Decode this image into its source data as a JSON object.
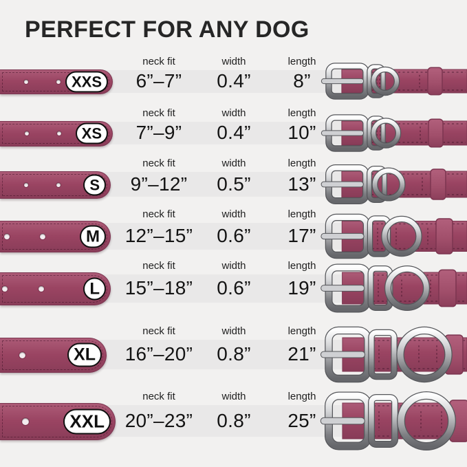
{
  "title": "PERFECT FOR ANY DOG",
  "columns": {
    "neck_fit": "neck fit",
    "width": "width",
    "length": "length"
  },
  "rows": [
    {
      "size": "XXS",
      "neck_fit": "6”–7”",
      "width": "0.4”",
      "length": "8”"
    },
    {
      "size": "XS",
      "neck_fit": "7”–9”",
      "width": "0.4”",
      "length": "10”"
    },
    {
      "size": "S",
      "neck_fit": "9”–12”",
      "width": "0.5”",
      "length": "13”"
    },
    {
      "size": "M",
      "neck_fit": "12”–15”",
      "width": "0.6”",
      "length": "17”"
    },
    {
      "size": "L",
      "neck_fit": "15”–18”",
      "width": "0.6”",
      "length": "19”"
    },
    {
      "size": "XL",
      "neck_fit": "16”–20”",
      "width": "0.8”",
      "length": "21”"
    },
    {
      "size": "XXL",
      "neck_fit": "20”–23”",
      "width": "0.8”",
      "length": "25”"
    }
  ],
  "colors": {
    "background": "#f2f1f0",
    "band": "#e9e8e8",
    "strap": "#9a4462",
    "strapLight": "#ac5b77",
    "strapDark": "#7c3550",
    "strapDark2": "#8a3d59",
    "metalLight": "#fdfdfd",
    "metalMid": "#a8a9ac",
    "metalDark": "#66676b",
    "metalOutline": "#55565a",
    "badgeBorder": "#101010",
    "titleColor": "#262626"
  },
  "icons": {
    "buckle": "buckle-icon",
    "d_ring": "d-ring-icon",
    "keeper": "keeper-loop-icon"
  }
}
